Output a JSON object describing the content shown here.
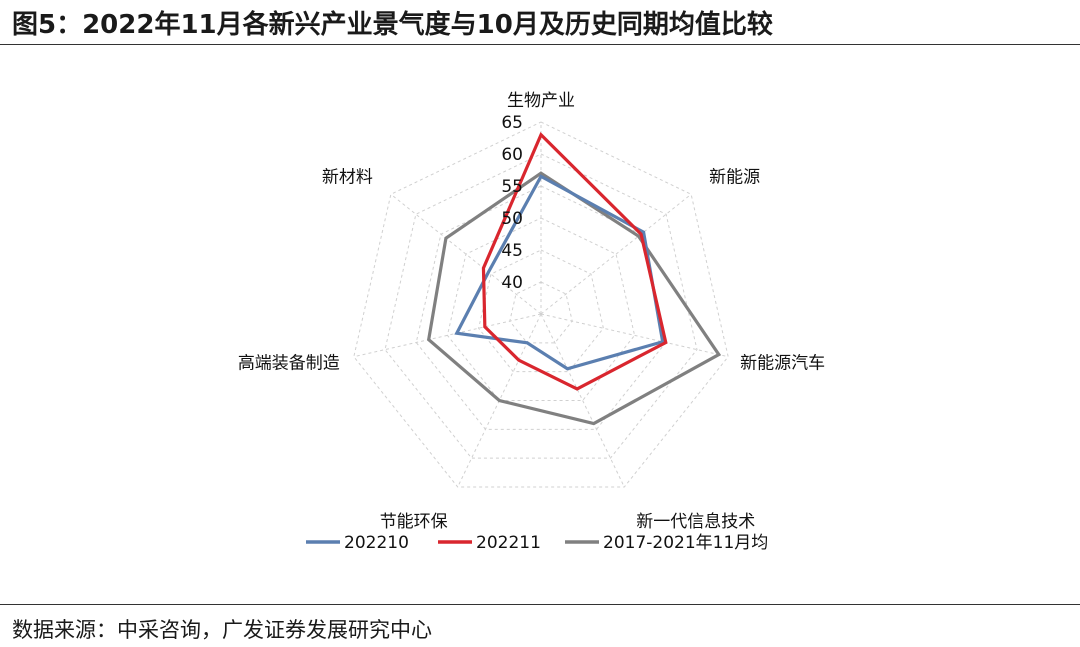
{
  "header": {
    "title": "图5：2022年11月各新兴产业景气度与10月及历史同期均值比较"
  },
  "footer": {
    "source": "数据来源：中采咨询，广发证券发展研究中心"
  },
  "chart_data": {
    "type": "radar",
    "title": "",
    "categories": [
      "生物产业",
      "新能源",
      "新能源汽车",
      "新一代信息技术",
      "节能环保",
      "高端装备制造",
      "新材料"
    ],
    "ticks": [
      "40",
      "45",
      "50",
      "55",
      "60",
      "65"
    ],
    "range": [
      35,
      65
    ],
    "grid": true,
    "legend_position": "bottom",
    "series": [
      {
        "name": "202210",
        "color": "#5b7fb0",
        "values": [
          56.5,
          55.5,
          54.5,
          44.5,
          40.0,
          48.5,
          45.5
        ]
      },
      {
        "name": "202211",
        "color": "#d9262e",
        "values": [
          63.0,
          55.0,
          55.0,
          48.0,
          43.0,
          44.0,
          46.5
        ]
      },
      {
        "name": "2017-2021年11月均",
        "color": "#808080",
        "values": [
          57.0,
          54.5,
          63.5,
          54.0,
          50.0,
          53.0,
          54.0
        ]
      }
    ]
  }
}
